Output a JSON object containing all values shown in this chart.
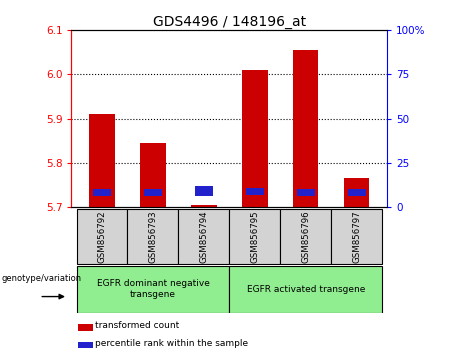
{
  "title": "GDS4496 / 148196_at",
  "categories": [
    "GSM856792",
    "GSM856793",
    "GSM856794",
    "GSM856795",
    "GSM856796",
    "GSM856797"
  ],
  "red_values": [
    5.91,
    5.845,
    5.705,
    6.01,
    6.055,
    5.765
  ],
  "blue_values": [
    5.725,
    5.725,
    5.726,
    5.728,
    5.726,
    5.724
  ],
  "blue_heights": [
    0.016,
    0.016,
    0.022,
    0.016,
    0.016,
    0.016
  ],
  "red_base": 5.7,
  "ylim": [
    5.7,
    6.1
  ],
  "y_ticks_left": [
    5.7,
    5.8,
    5.9,
    6.0,
    6.1
  ],
  "y_ticks_right": [
    0,
    25,
    50,
    75,
    100
  ],
  "group1_label": "EGFR dominant negative\ntransgene",
  "group2_label": "EGFR activated transgene",
  "group1_indices": [
    0,
    1,
    2
  ],
  "group2_indices": [
    3,
    4,
    5
  ],
  "legend_red": "transformed count",
  "legend_blue": "percentile rank within the sample",
  "genotype_label": "genotype/variation",
  "bar_color_red": "#cc0000",
  "bar_color_blue": "#2222cc",
  "group_bg": "#90EE90",
  "sample_bg": "#d3d3d3",
  "plot_bg": "#ffffff",
  "bar_width": 0.5,
  "blue_bar_width": 0.35
}
